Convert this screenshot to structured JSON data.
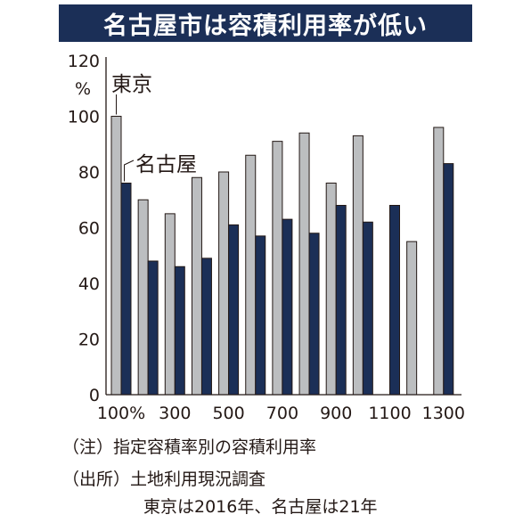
{
  "chart_data": {
    "type": "bar",
    "title": "名古屋市は容積利用率が低い",
    "y_unit": "%",
    "ylim": [
      0,
      120
    ],
    "yticks": [
      0,
      20,
      40,
      60,
      80,
      100,
      120
    ],
    "categories": [
      "100%",
      "200",
      "300",
      "400",
      "500",
      "600",
      "700",
      "800",
      "900",
      "1000",
      "1100",
      "1200",
      "1300"
    ],
    "visible_category_labels": [
      "100%",
      "300",
      "500",
      "700",
      "900",
      "1100",
      "1300"
    ],
    "series": [
      {
        "name": "東京",
        "color": "#bcbec0",
        "values": [
          100,
          70,
          65,
          78,
          80,
          86,
          91,
          94,
          76,
          93,
          null,
          55,
          96
        ]
      },
      {
        "name": "名古屋",
        "color": "#1b2f57",
        "values": [
          76,
          48,
          46,
          49,
          61,
          57,
          63,
          58,
          68,
          62,
          68,
          null,
          83
        ]
      }
    ],
    "grid": false,
    "legend": "direct-labels"
  },
  "notes": [
    "（注）指定容積率別の容積利用率",
    "（出所）土地利用現況調査",
    "東京は2016年、名古屋は21年"
  ]
}
